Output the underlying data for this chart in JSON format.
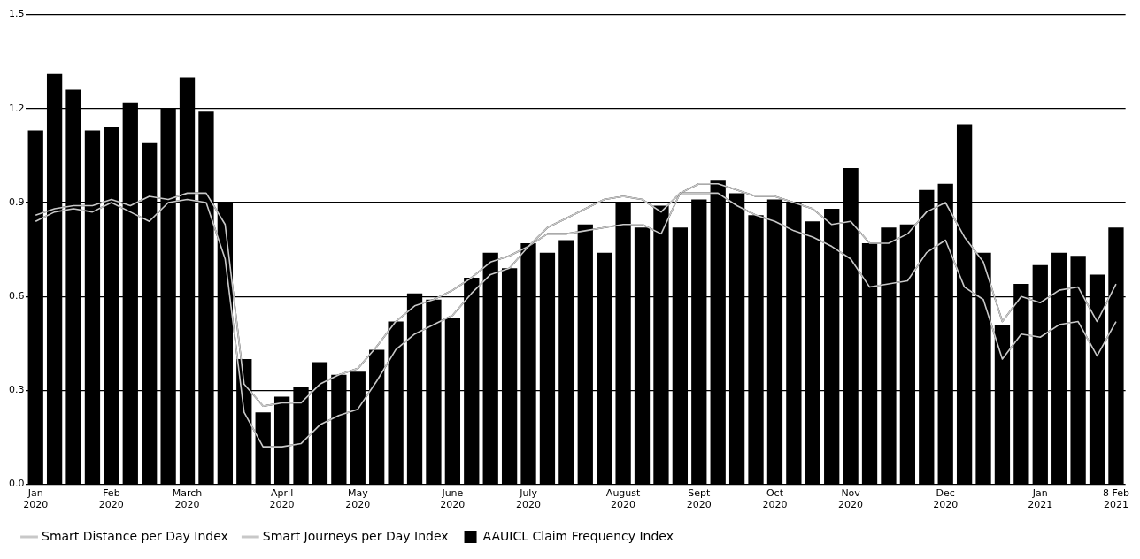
{
  "chart_data": {
    "type": "bar",
    "categories": [
      "Jan 2020",
      null,
      null,
      null,
      "Feb 2020",
      null,
      null,
      null,
      "March 2020",
      null,
      null,
      null,
      null,
      "April 2020",
      null,
      null,
      null,
      "May 2020",
      null,
      null,
      null,
      null,
      "June 2020",
      null,
      null,
      null,
      "July 2020",
      null,
      null,
      null,
      null,
      "August 2020",
      null,
      null,
      null,
      "Sept 2020",
      null,
      null,
      null,
      "Oct 2020",
      null,
      null,
      null,
      "Nov 2020",
      null,
      null,
      null,
      null,
      "Dec 2020",
      null,
      null,
      null,
      null,
      "Jan 2021",
      null,
      null,
      null,
      "8 Feb 2021"
    ],
    "series": [
      {
        "name": "Smart Distance per Day Index",
        "type": "line",
        "color": "#c8c8c8",
        "values": [
          0.84,
          0.87,
          0.88,
          0.87,
          0.9,
          0.87,
          0.84,
          0.9,
          0.91,
          0.9,
          0.72,
          0.23,
          0.12,
          0.12,
          0.13,
          0.19,
          0.22,
          0.24,
          0.33,
          0.43,
          0.48,
          0.51,
          0.54,
          0.61,
          0.67,
          0.69,
          0.76,
          0.82,
          0.85,
          0.88,
          0.91,
          0.92,
          0.91,
          0.87,
          0.93,
          0.96,
          0.96,
          0.94,
          0.92,
          0.92,
          0.9,
          0.88,
          0.83,
          0.84,
          0.77,
          0.77,
          0.8,
          0.87,
          0.9,
          0.79,
          0.71,
          0.52,
          0.6,
          0.58,
          0.62,
          0.63,
          0.52,
          0.64
        ]
      },
      {
        "name": "Smart Journeys per Day Index",
        "type": "line",
        "color": "#c8c8c8",
        "values": [
          0.86,
          0.88,
          0.89,
          0.89,
          0.91,
          0.89,
          0.92,
          0.91,
          0.93,
          0.93,
          0.83,
          0.32,
          0.25,
          0.26,
          0.26,
          0.32,
          0.35,
          0.37,
          0.44,
          0.52,
          0.57,
          0.59,
          0.62,
          0.66,
          0.71,
          0.73,
          0.76,
          0.8,
          0.8,
          0.81,
          0.82,
          0.83,
          0.83,
          0.8,
          0.93,
          0.93,
          0.93,
          0.89,
          0.86,
          0.84,
          0.81,
          0.79,
          0.76,
          0.72,
          0.63,
          0.64,
          0.65,
          0.74,
          0.78,
          0.63,
          0.59,
          0.4,
          0.48,
          0.47,
          0.51,
          0.52,
          0.41,
          0.52
        ]
      },
      {
        "name": "AAUICL Claim Frequency Index",
        "color": "#000000",
        "values": [
          1.13,
          1.31,
          1.26,
          1.13,
          1.14,
          1.22,
          1.09,
          1.2,
          1.3,
          1.19,
          0.9,
          0.4,
          0.23,
          0.28,
          0.31,
          0.39,
          0.35,
          0.36,
          0.43,
          0.52,
          0.61,
          0.59,
          0.53,
          0.66,
          0.74,
          0.69,
          0.77,
          0.74,
          0.78,
          0.83,
          0.74,
          0.9,
          0.82,
          0.89,
          0.82,
          0.91,
          0.97,
          0.93,
          0.86,
          0.91,
          0.9,
          0.84,
          0.88,
          1.01,
          0.77,
          0.82,
          0.83,
          0.94,
          0.96,
          1.15,
          0.74,
          0.51,
          0.64,
          0.7,
          0.74,
          0.73,
          0.67,
          0.82
        ]
      }
    ],
    "ylim": [
      0,
      1.5
    ],
    "yticks": [
      {
        "value": 0,
        "label": "0.0"
      },
      0.3,
      0.6,
      0.9,
      1.2,
      1.5
    ],
    "grid": "y",
    "legend": "bottom left",
    "marker": "none",
    "line_style": "solid"
  }
}
